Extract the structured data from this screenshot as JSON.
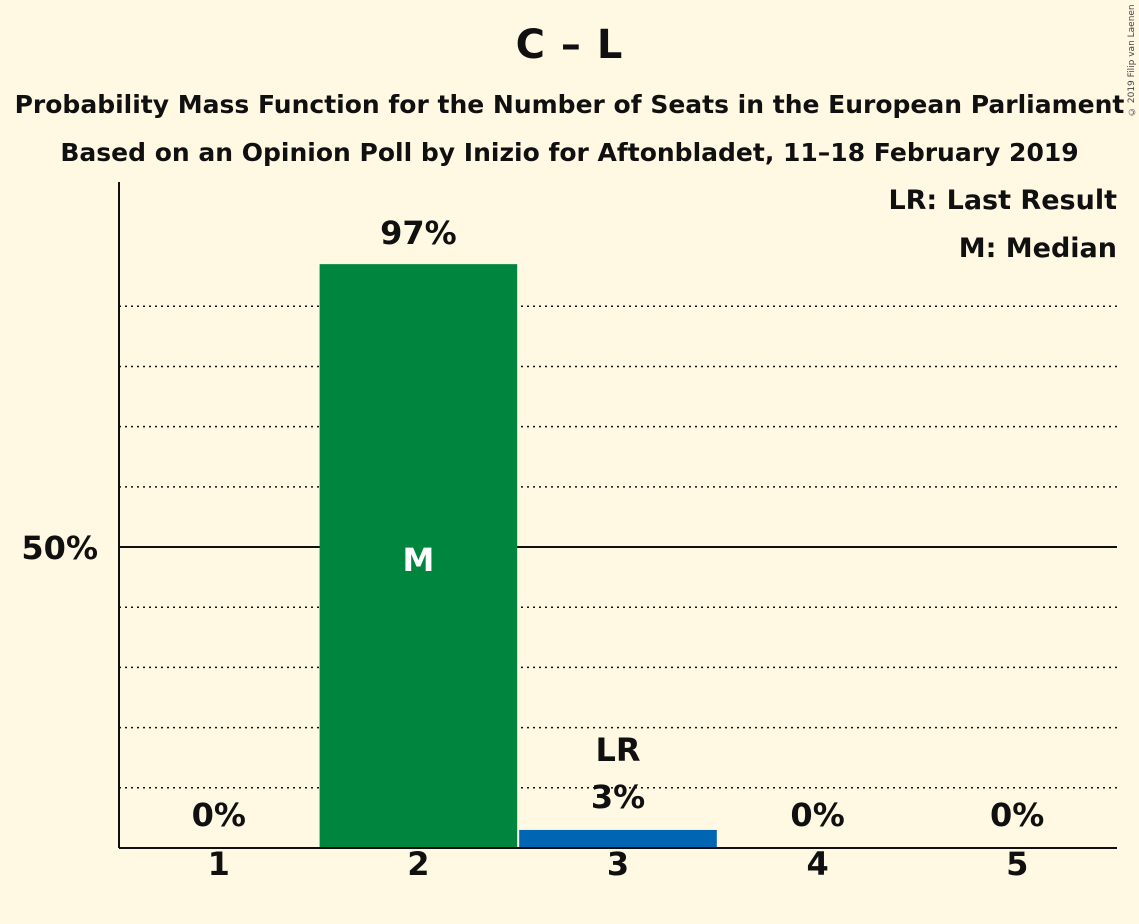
{
  "title": "C – L",
  "subtitle": "Probability Mass Function for the Number of Seats in the European Parliament",
  "subtitle2": "Based on an Opinion Poll by Inizio for Aftonbladet, 11–18 February 2019",
  "copyright": "© 2019 Filip van Laenen",
  "legend": {
    "last_result": "LR: Last Result",
    "median": "M: Median"
  },
  "colors": {
    "background": "#fff9e3",
    "median_bar": "#00853f",
    "last_result_bar": "#0066b3",
    "text": "#101010"
  },
  "chart_data": {
    "type": "bar",
    "categories": [
      "1",
      "2",
      "3",
      "4",
      "5"
    ],
    "values": [
      0,
      97,
      3,
      0,
      0
    ],
    "value_labels": [
      "0%",
      "97%",
      "3%",
      "0%",
      "0%"
    ],
    "median_category": "2",
    "median_marker": "M",
    "last_result_category": "3",
    "last_result_marker": "LR",
    "ylim": [
      0,
      105
    ],
    "ytick_label": "50%",
    "ytick_value": 50,
    "grid": "dotted every 10%",
    "legend_position": "top-right",
    "xlabel": "",
    "ylabel": ""
  }
}
